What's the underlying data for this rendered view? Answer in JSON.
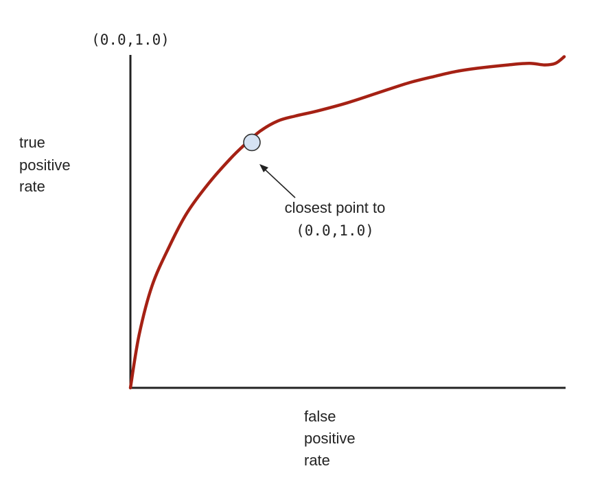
{
  "chart_data": {
    "type": "line",
    "corner_label": "(0.0,1.0)",
    "ylabel_lines": [
      "true",
      "positive",
      "rate"
    ],
    "xlabel_lines": [
      "false",
      "positive",
      "rate"
    ],
    "series": [
      {
        "color": "#a52114",
        "x": [
          0.0,
          0.02,
          0.05,
          0.09,
          0.13,
          0.18,
          0.23,
          0.265,
          0.3,
          0.34,
          0.38,
          0.43,
          0.5,
          0.57,
          0.64,
          0.7,
          0.75,
          0.8,
          0.87,
          0.92,
          0.955,
          0.98,
          1.0
        ],
        "y": [
          0.0,
          0.16,
          0.31,
          0.43,
          0.53,
          0.62,
          0.695,
          0.74,
          0.78,
          0.81,
          0.825,
          0.84,
          0.865,
          0.895,
          0.925,
          0.945,
          0.96,
          0.97,
          0.98,
          0.985,
          0.98,
          0.985,
          1.005
        ]
      }
    ],
    "highlight_point": {
      "x": 0.28,
      "y": 0.745,
      "fill": "#d5e2f3"
    },
    "annotation_lines": [
      "closest point to",
      "(0.0,1.0)"
    ],
    "xlim": [
      0,
      1
    ],
    "ylim": [
      0,
      1
    ],
    "grid": false,
    "legend": "none"
  }
}
